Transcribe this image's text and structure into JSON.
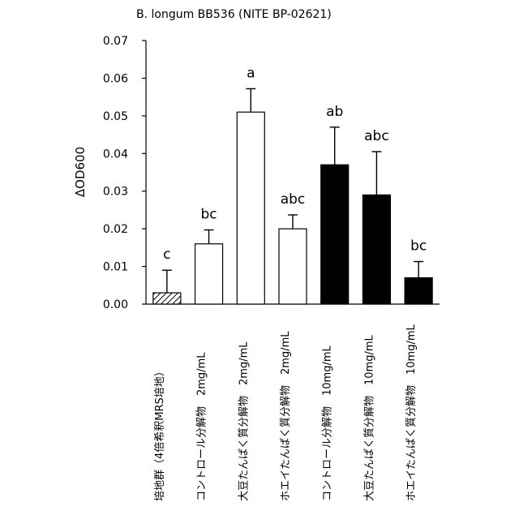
{
  "chart_data": {
    "type": "bar",
    "title": "B. longum BB536 (NITE BP-02621)",
    "ylabel": "ΔOD600",
    "xlabel": "",
    "ylim": [
      0,
      0.07
    ],
    "yticks": [
      "0.00",
      "0.01",
      "0.02",
      "0.03",
      "0.04",
      "0.05",
      "0.06",
      "0.07"
    ],
    "grid": false,
    "legend": "none",
    "categories": [
      "培地群（4倍希釈MRS培地）",
      "コントロール分解物　2mg/mL",
      "大豆たんぱく質分解物　2mg/mL",
      "ホエイたんぱく質分解物　2mg/mL",
      "コントロール分解物　10mg/mL",
      "大豆たんぱく質分解物　10mg/mL",
      "ホエイたんぱく質分解物　10mg/mL"
    ],
    "values": [
      0.003,
      0.016,
      0.051,
      0.02,
      0.037,
      0.029,
      0.007
    ],
    "errors": [
      0.006,
      0.0037,
      0.0062,
      0.0037,
      0.01,
      0.0115,
      0.0043
    ],
    "significance": [
      "c",
      "bc",
      "a",
      "abc",
      "ab",
      "abc",
      "bc"
    ],
    "fills": [
      "hatched",
      "white",
      "white",
      "white",
      "black",
      "black",
      "black"
    ]
  }
}
